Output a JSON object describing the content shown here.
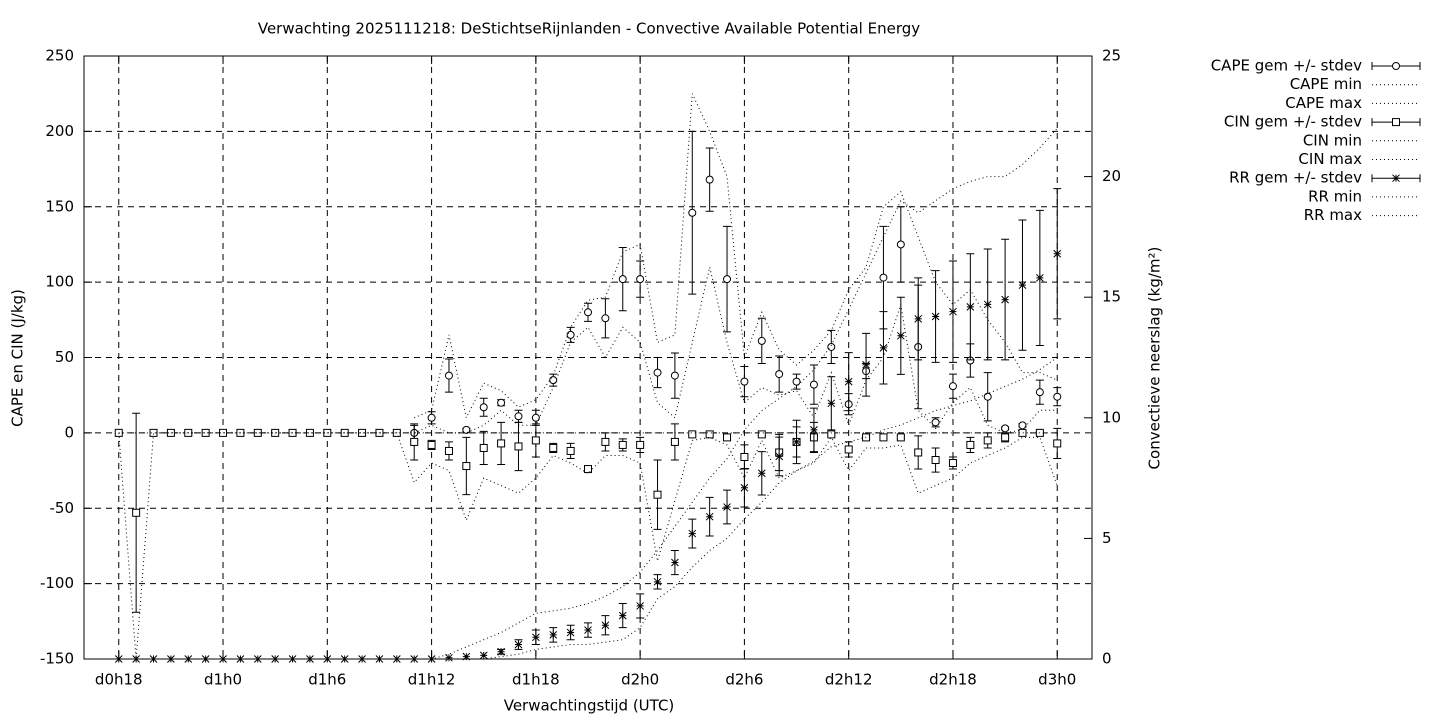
{
  "chart_data": {
    "type": "errorbar",
    "title": "Verwachting 2025111218: DeStichtseRijnlanden - Convective Available Potential Energy",
    "xlabel": "Verwachtingstijd (UTC)",
    "ylabel": "CAPE en CIN (J/kg)",
    "y2label": "Convectieve neerslag (kg/m²)",
    "grid": true,
    "legend": "outside-right-top",
    "xlim": [
      16,
      74
    ],
    "xticks": [
      {
        "value": 18,
        "label": "d0h18"
      },
      {
        "value": 24,
        "label": "d1h0"
      },
      {
        "value": 30,
        "label": "d1h6"
      },
      {
        "value": 36,
        "label": "d1h12"
      },
      {
        "value": 42,
        "label": "d1h18"
      },
      {
        "value": 48,
        "label": "d2h0"
      },
      {
        "value": 54,
        "label": "d2h6"
      },
      {
        "value": 60,
        "label": "d2h12"
      },
      {
        "value": 66,
        "label": "d2h18"
      },
      {
        "value": 72,
        "label": "d3h0"
      }
    ],
    "ylim": [
      -150,
      250
    ],
    "yticks": [
      -150,
      -100,
      -50,
      0,
      50,
      100,
      150,
      200,
      250
    ],
    "y2lim": [
      0,
      25
    ],
    "y2ticks": [
      0,
      5,
      10,
      15,
      20,
      25
    ],
    "x": [
      18,
      19,
      20,
      21,
      22,
      23,
      24,
      25,
      26,
      27,
      28,
      29,
      30,
      31,
      32,
      33,
      34,
      35,
      36,
      37,
      38,
      39,
      40,
      41,
      42,
      43,
      44,
      45,
      46,
      47,
      48,
      49,
      50,
      51,
      52,
      53,
      54,
      55,
      56,
      57,
      58,
      59,
      60,
      61,
      62,
      63,
      64,
      65,
      66,
      67,
      68,
      69,
      70,
      71,
      72
    ],
    "series": [
      {
        "name": "CAPE gem +/- stdev",
        "style": "errorbars",
        "marker": "circle",
        "color": "#000000",
        "values": [
          null,
          null,
          null,
          null,
          null,
          null,
          null,
          null,
          null,
          null,
          null,
          null,
          null,
          null,
          null,
          null,
          null,
          0,
          10,
          38,
          2,
          17,
          20,
          11,
          10,
          35,
          65,
          80,
          76,
          102,
          102,
          40,
          38,
          146,
          168,
          102,
          34,
          61,
          39,
          34,
          32,
          57,
          19,
          41,
          103,
          125,
          57,
          7,
          31,
          48,
          24,
          3,
          5,
          27,
          24
        ],
        "errors": [
          null,
          null,
          null,
          null,
          null,
          null,
          null,
          null,
          null,
          null,
          null,
          null,
          null,
          null,
          null,
          null,
          null,
          5,
          4,
          11,
          1,
          6,
          2,
          4,
          5,
          4,
          5,
          6,
          13,
          21,
          12,
          10,
          15,
          54,
          21,
          35,
          10,
          15,
          12,
          5,
          13,
          11,
          7,
          5,
          34,
          25,
          41,
          3,
          8,
          11,
          16,
          1,
          1,
          8,
          6
        ]
      },
      {
        "name": "CAPE min",
        "style": "dotted",
        "color": "#000000",
        "values": [
          null,
          null,
          null,
          null,
          null,
          null,
          null,
          null,
          null,
          null,
          null,
          null,
          null,
          null,
          null,
          null,
          null,
          0,
          5,
          0,
          0,
          5,
          15,
          5,
          5,
          30,
          60,
          70,
          50,
          70,
          60,
          20,
          10,
          60,
          110,
          60,
          20,
          30,
          25,
          28,
          10,
          40,
          5,
          35,
          50,
          85,
          15,
          3,
          20,
          30,
          5,
          0,
          2,
          15,
          15
        ]
      },
      {
        "name": "CAPE max",
        "style": "dotted",
        "color": "#000000",
        "values": [
          null,
          null,
          null,
          null,
          null,
          null,
          null,
          null,
          null,
          null,
          null,
          null,
          null,
          null,
          null,
          null,
          null,
          10,
          15,
          65,
          10,
          33,
          28,
          17,
          22,
          38,
          70,
          88,
          90,
          120,
          125,
          60,
          65,
          225,
          200,
          170,
          50,
          80,
          55,
          45,
          55,
          68,
          95,
          110,
          150,
          160,
          130,
          100,
          85,
          95,
          75,
          60,
          40,
          40,
          35
        ]
      },
      {
        "name": "CIN gem +/- stdev",
        "style": "errorbars",
        "marker": "square",
        "color": "#000000",
        "values": [
          0,
          -53,
          0,
          0,
          0,
          0,
          0,
          0,
          0,
          0,
          0,
          0,
          0,
          0,
          0,
          0,
          0,
          -6,
          -8,
          -12,
          -22,
          -10,
          -7,
          -9,
          -5,
          -10,
          -12,
          -24,
          -6,
          -8,
          -8,
          -41,
          -6,
          -1,
          -1,
          -3,
          -16,
          -1,
          -13,
          -6,
          -3,
          -1,
          -11,
          -3,
          -3,
          -3,
          -13,
          -18,
          -20,
          -8,
          -5,
          -3,
          0,
          0,
          -7
        ],
        "errors": [
          0,
          66,
          0,
          0,
          0,
          0,
          0,
          0,
          0,
          0,
          0,
          0,
          0,
          0,
          0,
          0,
          0,
          12,
          3,
          6,
          19,
          11,
          14,
          16,
          11,
          3,
          5,
          2,
          6,
          4,
          5,
          23,
          12,
          1,
          1,
          2,
          8,
          1,
          12,
          10,
          10,
          1,
          5,
          1,
          1,
          1,
          11,
          8,
          4,
          5,
          5,
          3,
          1,
          1,
          10
        ]
      },
      {
        "name": "CIN min",
        "style": "dotted",
        "color": "#000000",
        "values": [
          0,
          -150,
          0,
          0,
          0,
          0,
          0,
          0,
          0,
          0,
          0,
          0,
          0,
          0,
          0,
          0,
          0,
          -33,
          -20,
          -25,
          -58,
          -30,
          -35,
          -40,
          -30,
          -15,
          -20,
          -27,
          -15,
          -15,
          -20,
          -85,
          -45,
          -5,
          -3,
          -8,
          -30,
          -5,
          -30,
          -25,
          -20,
          -3,
          -25,
          -10,
          -10,
          -8,
          -40,
          -35,
          -30,
          -20,
          -15,
          -10,
          -3,
          -3,
          -35
        ]
      },
      {
        "name": "CIN max",
        "style": "dotted",
        "color": "#000000",
        "values": [
          0,
          0,
          0,
          0,
          0,
          0,
          0,
          0,
          0,
          0,
          0,
          0,
          0,
          0,
          0,
          0,
          0,
          0,
          0,
          0,
          0,
          0,
          0,
          0,
          0,
          0,
          0,
          0,
          0,
          0,
          0,
          0,
          0,
          0,
          0,
          0,
          0,
          0,
          0,
          0,
          0,
          0,
          0,
          0,
          0,
          0,
          0,
          0,
          0,
          0,
          0,
          0,
          0,
          0,
          0
        ]
      },
      {
        "name": "RR gem +/- stdev",
        "style": "errorbars",
        "marker": "star",
        "color": "#000000",
        "axis": "y2",
        "values": [
          0,
          0,
          0,
          0,
          0,
          0,
          0,
          0,
          0,
          0,
          0,
          0,
          0,
          0,
          0,
          0,
          0,
          0,
          0,
          0.05,
          0.1,
          0.15,
          0.3,
          0.6,
          0.9,
          1.0,
          1.1,
          1.2,
          1.4,
          1.8,
          2.2,
          3.2,
          4.0,
          5.2,
          5.9,
          6.3,
          7.1,
          7.7,
          8.4,
          9.0,
          9.5,
          10.6,
          11.5,
          12.2,
          12.9,
          13.4,
          14.1,
          14.2,
          14.4,
          14.6,
          14.7,
          14.9,
          15.5,
          15.8,
          16.8
        ],
        "errors": [
          0,
          0,
          0,
          0,
          0,
          0,
          0,
          0,
          0,
          0,
          0,
          0,
          0,
          0,
          0,
          0,
          0,
          0,
          0,
          0,
          0,
          0,
          0.1,
          0.2,
          0.3,
          0.3,
          0.3,
          0.3,
          0.4,
          0.5,
          0.5,
          0.3,
          0.5,
          0.6,
          0.8,
          0.7,
          0.8,
          0.9,
          0.8,
          0.9,
          0.9,
          1.1,
          1.2,
          1.3,
          1.5,
          1.6,
          1.7,
          1.9,
          2.1,
          2.2,
          2.3,
          2.5,
          2.7,
          2.8,
          2.7
        ]
      },
      {
        "name": "RR min",
        "style": "dotted",
        "color": "#000000",
        "axis": "y2",
        "values": [
          0,
          0,
          0,
          0,
          0,
          0,
          0,
          0,
          0,
          0,
          0,
          0,
          0,
          0,
          0,
          0,
          0,
          0,
          0,
          0,
          0,
          0,
          0.1,
          0.2,
          0.4,
          0.5,
          0.6,
          0.6,
          0.7,
          0.8,
          1.3,
          2.5,
          3.0,
          3.8,
          4.5,
          5.0,
          5.8,
          6.5,
          7.3,
          7.8,
          8.2,
          8.8,
          9.0,
          9.2,
          9.5,
          9.7,
          10.0,
          10.3,
          10.5,
          10.7,
          11.0,
          11.3,
          11.6,
          12.0,
          12.5
        ]
      },
      {
        "name": "RR max",
        "style": "dotted",
        "color": "#000000",
        "axis": "y2",
        "values": [
          0,
          0,
          0,
          0,
          0,
          0,
          0,
          0,
          0,
          0,
          0,
          0,
          0,
          0,
          0,
          0,
          0,
          0,
          0,
          0.2,
          0.5,
          0.8,
          1.1,
          1.5,
          1.9,
          2.0,
          2.1,
          2.3,
          2.6,
          3.0,
          3.6,
          4.5,
          5.5,
          6.5,
          7.5,
          8.3,
          9.5,
          10.3,
          10.8,
          11.3,
          12.0,
          13.0,
          14.5,
          16.0,
          17.5,
          19.0,
          18.5,
          19.0,
          19.5,
          19.8,
          20.0,
          20.0,
          20.5,
          21.2,
          22.0
        ]
      }
    ]
  }
}
